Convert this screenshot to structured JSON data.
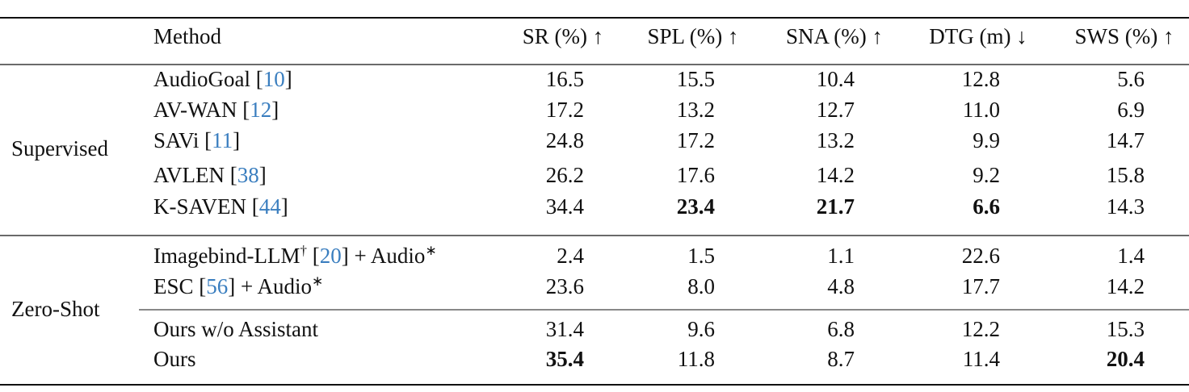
{
  "table": {
    "header": [
      "Method",
      "SR (%) ↑",
      "SPL (%) ↑",
      "SNA (%) ↑",
      "DTG (m) ↓",
      "SWS (%) ↑"
    ],
    "groups": [
      {
        "label": "Supervised",
        "rows": [
          {
            "method": [
              {
                "text": "AudioGoal ["
              },
              {
                "text": "10",
                "style": "cite"
              },
              {
                "text": "]"
              }
            ],
            "cells": [
              "16.5",
              "15.5",
              "10.4",
              "12.8",
              "5.6"
            ],
            "bold": []
          },
          {
            "method": [
              {
                "text": "AV-WAN ["
              },
              {
                "text": "12",
                "style": "cite"
              },
              {
                "text": "]"
              }
            ],
            "cells": [
              "17.2",
              "13.2",
              "12.7",
              "11.0",
              "6.9"
            ],
            "bold": []
          },
          {
            "method": [
              {
                "text": "SAVi ["
              },
              {
                "text": "11",
                "style": "cite"
              },
              {
                "text": "]"
              }
            ],
            "cells": [
              "24.8",
              "17.2",
              "13.2",
              "9.9",
              "14.7"
            ],
            "bold": []
          },
          {
            "method": [
              {
                "text": "AVLEN ["
              },
              {
                "text": "38",
                "style": "cite"
              },
              {
                "text": "]"
              }
            ],
            "cells": [
              "26.2",
              "17.6",
              "14.2",
              "9.2",
              "15.8"
            ],
            "bold": []
          },
          {
            "method": [
              {
                "text": "K-SAVEN ["
              },
              {
                "text": "44",
                "style": "cite"
              },
              {
                "text": "]"
              }
            ],
            "cells": [
              "34.4",
              "23.4",
              "21.7",
              "6.6",
              "14.3"
            ],
            "bold": [
              1,
              2,
              3
            ]
          }
        ]
      },
      {
        "label": "Zero-Shot",
        "rows": [
          {
            "method": [
              {
                "text": "Imagebind-LLM"
              },
              {
                "text": "†",
                "style": "sup"
              },
              {
                "text": " ["
              },
              {
                "text": "20",
                "style": "cite"
              },
              {
                "text": "] + Audio"
              },
              {
                "text": "∗",
                "style": "sup"
              }
            ],
            "cells": [
              "2.4",
              "1.5",
              "1.1",
              "22.6",
              "1.4"
            ],
            "bold": []
          },
          {
            "method": [
              {
                "text": "ESC ["
              },
              {
                "text": "56",
                "style": "cite"
              },
              {
                "text": "] + Audio"
              },
              {
                "text": "∗",
                "style": "sup"
              }
            ],
            "cells": [
              "23.6",
              "8.0",
              "4.8",
              "17.7",
              "14.2"
            ],
            "bold": []
          },
          {
            "method": [
              {
                "text": "Ours w/o Assistant"
              }
            ],
            "cells": [
              "31.4",
              "9.6",
              "6.8",
              "12.2",
              "15.3"
            ],
            "bold": []
          },
          {
            "method": [
              {
                "text": "Ours"
              }
            ],
            "cells": [
              "35.4",
              "11.8",
              "8.7",
              "11.4",
              "20.4"
            ],
            "bold": [
              0,
              4
            ]
          }
        ]
      }
    ]
  }
}
